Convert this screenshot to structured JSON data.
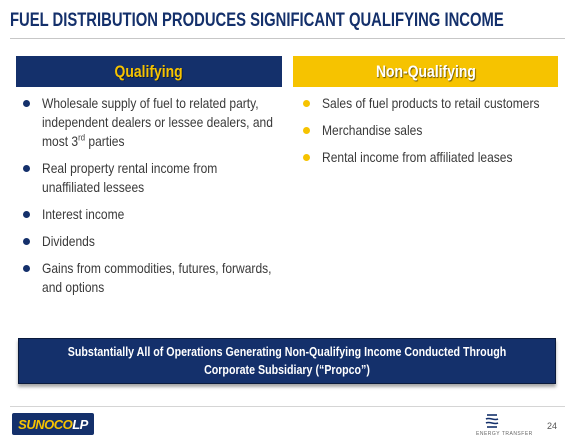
{
  "slide": {
    "title": "FUEL DISTRIBUTION PRODUCES SIGNIFICANT QUALIFYING INCOME",
    "page_number": "24"
  },
  "qualifying": {
    "heading": "Qualifying",
    "items": [
      "Wholesale supply of fuel to related party, independent dealers or lessee dealers, and most 3",
      "Real property rental income from unaffiliated lessees",
      "Interest income",
      "Dividends",
      "Gains from commodities, futures, forwards, and options"
    ],
    "item0_superscript": "rd",
    "item0_suffix": " parties"
  },
  "non_qualifying": {
    "heading": "Non-Qualifying",
    "items": [
      "Sales of fuel products to retail customers",
      "Merchandise sales",
      "Rental income from affiliated leases"
    ]
  },
  "banner": {
    "text": "Substantially All of Operations Generating Non-Qualifying Income Conducted Through Corporate Subsidiary (“Propco”)"
  },
  "footer": {
    "logo_part1": "SUNOCO",
    "logo_part2": "LP",
    "partner_logo_text": "ENERGY TRANSFER"
  },
  "colors": {
    "navy": "#14306b",
    "gold": "#f6c300"
  }
}
